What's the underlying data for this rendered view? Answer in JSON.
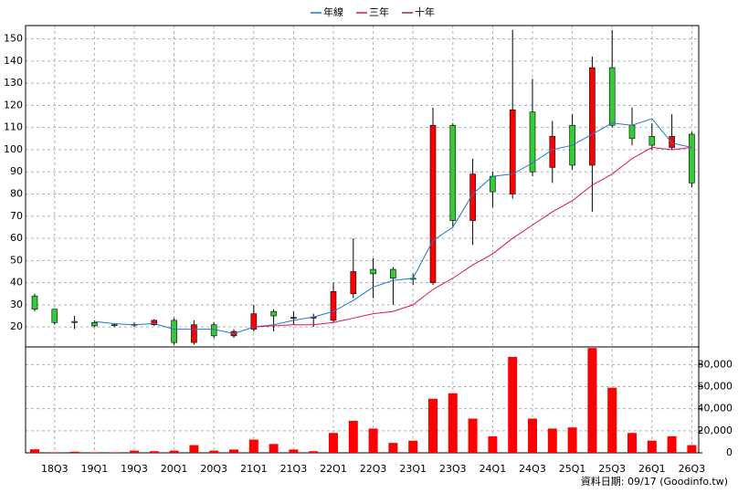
{
  "chart_data": {
    "type": "candlestick",
    "categories": [
      null,
      "18Q3",
      null,
      "19Q1",
      null,
      "19Q3",
      null,
      "20Q1",
      null,
      "20Q3",
      null,
      "21Q1",
      null,
      "21Q3",
      null,
      "22Q1",
      null,
      "22Q3",
      null,
      "23Q1",
      null,
      "23Q3",
      null,
      "24Q1",
      null,
      "24Q3",
      null,
      "25Q1",
      null,
      "25Q3",
      null,
      "26Q1",
      null,
      "26Q3"
    ],
    "open": [
      34,
      28,
      22.5,
      22,
      21,
      21,
      21,
      23,
      13,
      21,
      16,
      19,
      27,
      24,
      24,
      23,
      35,
      46,
      46,
      42,
      40,
      111,
      68,
      88,
      80,
      117,
      92,
      111,
      93,
      137,
      111,
      106,
      101,
      107
    ],
    "high": [
      35,
      28,
      25,
      23,
      21.5,
      22,
      23.5,
      24,
      23,
      22,
      19,
      30,
      28,
      27,
      26,
      40,
      60,
      51,
      47,
      44,
      119,
      112,
      96,
      90,
      154,
      132,
      113,
      116,
      142,
      154,
      119,
      112,
      116,
      108
    ],
    "low": [
      27,
      21,
      19,
      20,
      20,
      20,
      20.5,
      12,
      12,
      15,
      15,
      18,
      18,
      21,
      20,
      22,
      33,
      33,
      30,
      39,
      39,
      65,
      57,
      74,
      78,
      88,
      85,
      91,
      72,
      110,
      102,
      100,
      100,
      83
    ],
    "close": [
      28,
      22,
      22,
      20.5,
      20.8,
      21.2,
      23,
      13,
      21,
      16,
      18,
      26,
      25,
      24.3,
      24.5,
      36,
      45,
      44,
      42,
      41.5,
      111,
      68,
      89,
      81,
      118,
      90,
      106,
      93,
      137,
      111,
      105,
      102,
      106,
      85
    ],
    "up_color": "#ff0000",
    "down_color": "#33cc33",
    "ylim": [
      11,
      156
    ],
    "yticks": [
      20,
      30,
      40,
      50,
      60,
      70,
      80,
      90,
      100,
      110,
      120,
      130,
      140,
      150
    ],
    "grid": true,
    "series": [
      {
        "name": "年線",
        "color": "#1f77d0",
        "values": [
          null,
          null,
          null,
          22.5,
          21.5,
          21,
          21.5,
          19,
          19,
          19,
          17,
          20,
          21,
          23,
          24.5,
          27,
          32,
          38,
          41,
          42,
          59,
          65,
          80,
          88,
          89,
          94,
          100,
          102,
          107,
          112,
          111,
          114,
          103,
          101
        ]
      },
      {
        "name": "三年",
        "color": "#e0105a",
        "values": [
          null,
          null,
          null,
          null,
          null,
          null,
          null,
          null,
          null,
          null,
          null,
          20,
          20.5,
          21,
          21,
          22,
          24,
          26,
          27,
          30,
          37,
          42,
          48,
          53,
          60,
          66,
          72,
          77,
          84,
          89,
          96,
          101,
          100,
          101
        ]
      },
      {
        "name": "十年",
        "color": "#a0206a",
        "values": [
          null,
          null,
          null,
          null,
          null,
          null,
          null,
          null,
          null,
          null,
          null,
          null,
          null,
          null,
          null,
          null,
          null,
          null,
          null,
          null,
          null,
          null,
          null,
          null,
          null,
          null,
          null,
          null,
          null,
          null,
          null,
          null,
          null,
          null
        ]
      }
    ],
    "volume": {
      "color": "#ff0000",
      "values": [
        3200,
        500,
        1000,
        500,
        500,
        2000,
        1500,
        2000,
        7000,
        2000,
        3000,
        12000,
        8000,
        3000,
        1500,
        18000,
        29000,
        22000,
        9000,
        11000,
        49000,
        54000,
        31000,
        15000,
        87000,
        31000,
        22000,
        23000,
        95000,
        59000,
        18000,
        11000,
        15000,
        7000
      ],
      "y2lim": [
        0,
        96000
      ],
      "y2ticks": [
        0,
        {
          "value": 20000,
          "label": "20,000"
        },
        {
          "value": 40000,
          "label": "40,000"
        },
        {
          "value": 60000,
          "label": "60,000"
        },
        {
          "value": 80000,
          "label": "80,000"
        }
      ]
    },
    "footnote": "資料日期: 09/17 (Goodinfo.tw)"
  }
}
